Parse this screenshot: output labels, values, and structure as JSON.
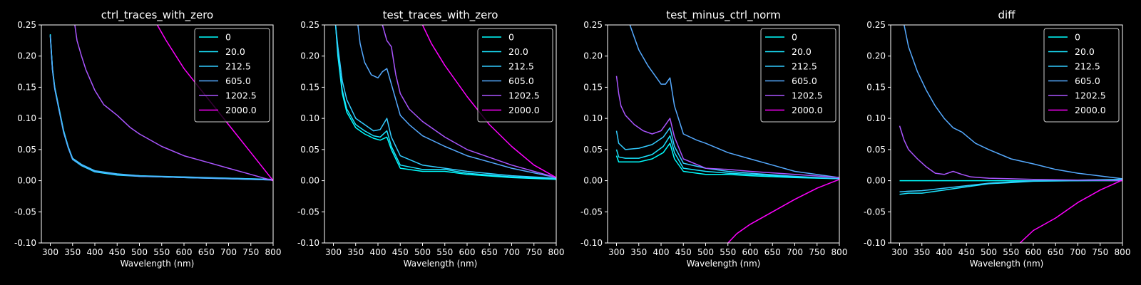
{
  "figure": {
    "background": "#000000",
    "foreground": "#ffffff"
  },
  "chart_data": [
    {
      "type": "line",
      "title": "ctrl_traces_with_zero",
      "xlabel": "Wavelength (nm)",
      "ylabel": "",
      "xlim": [
        280,
        800
      ],
      "ylim": [
        -0.1,
        0.25
      ],
      "xticks": [
        300,
        350,
        400,
        450,
        500,
        550,
        600,
        650,
        700,
        750,
        800
      ],
      "yticks": [
        -0.1,
        -0.05,
        0.0,
        0.05,
        0.1,
        0.15,
        0.2,
        0.25
      ],
      "grid": false,
      "legend_position": "top-right",
      "series": [
        {
          "name": "0",
          "color": "#00ffff",
          "x": [
            300,
            305,
            310,
            320,
            330,
            340,
            350,
            370,
            400,
            450,
            500,
            550,
            600,
            700,
            800
          ],
          "y": [
            0.235,
            0.18,
            0.15,
            0.115,
            0.08,
            0.055,
            0.035,
            0.025,
            0.015,
            0.01,
            0.008,
            0.006,
            0.005,
            0.004,
            0.002
          ]
        },
        {
          "name": "20.0",
          "color": "#1ae5ff",
          "x": [
            300,
            305,
            310,
            320,
            330,
            340,
            350,
            370,
            400,
            450,
            500,
            550,
            600,
            700,
            800
          ],
          "y": [
            0.233,
            0.178,
            0.148,
            0.113,
            0.078,
            0.054,
            0.034,
            0.024,
            0.014,
            0.009,
            0.007,
            0.006,
            0.005,
            0.003,
            0.001
          ]
        },
        {
          "name": "212.5",
          "color": "#33ccff",
          "x": [
            300,
            305,
            310,
            320,
            330,
            340,
            350,
            370,
            400,
            450,
            500,
            550,
            600,
            700,
            800
          ],
          "y": [
            0.234,
            0.179,
            0.149,
            0.114,
            0.079,
            0.055,
            0.036,
            0.026,
            0.016,
            0.011,
            0.008,
            0.007,
            0.006,
            0.004,
            0.002
          ]
        },
        {
          "name": "605.0",
          "color": "#55aaff",
          "x": [
            300,
            305,
            310,
            320,
            330,
            340,
            350,
            370,
            400,
            450,
            500,
            550,
            600,
            700,
            800
          ],
          "y": [
            0.232,
            0.177,
            0.147,
            0.112,
            0.077,
            0.053,
            0.034,
            0.025,
            0.015,
            0.01,
            0.007,
            0.006,
            0.005,
            0.003,
            0.001
          ]
        },
        {
          "name": "1202.5",
          "color": "#aa55ff",
          "x": [
            355,
            360,
            370,
            380,
            400,
            420,
            450,
            480,
            500,
            550,
            600,
            650,
            700,
            750,
            800
          ],
          "y": [
            0.25,
            0.225,
            0.2,
            0.178,
            0.145,
            0.122,
            0.105,
            0.085,
            0.075,
            0.055,
            0.04,
            0.03,
            0.02,
            0.01,
            0.0
          ]
        },
        {
          "name": "2000.0",
          "color": "#ff00ff",
          "x": [
            540,
            560,
            600,
            650,
            700,
            750,
            800
          ],
          "y": [
            0.25,
            0.225,
            0.18,
            0.135,
            0.09,
            0.045,
            0.0
          ]
        }
      ]
    },
    {
      "type": "line",
      "title": "test_traces_with_zero",
      "xlabel": "Wavelength (nm)",
      "ylabel": "",
      "xlim": [
        280,
        800
      ],
      "ylim": [
        -0.1,
        0.25
      ],
      "xticks": [
        300,
        350,
        400,
        450,
        500,
        550,
        600,
        650,
        700,
        750,
        800
      ],
      "yticks": [
        -0.1,
        -0.05,
        0.0,
        0.05,
        0.1,
        0.15,
        0.2,
        0.25
      ],
      "grid": false,
      "legend_position": "top-right",
      "series": [
        {
          "name": "0",
          "color": "#00ffff",
          "x": [
            305,
            310,
            320,
            330,
            350,
            370,
            390,
            405,
            420,
            430,
            450,
            500,
            550,
            600,
            700,
            800
          ],
          "y": [
            0.25,
            0.2,
            0.14,
            0.11,
            0.085,
            0.075,
            0.068,
            0.065,
            0.07,
            0.05,
            0.02,
            0.015,
            0.015,
            0.01,
            0.005,
            0.002
          ]
        },
        {
          "name": "20.0",
          "color": "#1ae5ff",
          "x": [
            305,
            310,
            320,
            330,
            350,
            370,
            390,
            405,
            420,
            430,
            450,
            500,
            550,
            600,
            700,
            800
          ],
          "y": [
            0.25,
            0.205,
            0.145,
            0.115,
            0.09,
            0.08,
            0.072,
            0.07,
            0.08,
            0.055,
            0.025,
            0.018,
            0.018,
            0.012,
            0.006,
            0.003
          ]
        },
        {
          "name": "212.5",
          "color": "#33ccff",
          "x": [
            305,
            310,
            320,
            330,
            350,
            370,
            390,
            405,
            420,
            430,
            450,
            500,
            550,
            600,
            700,
            800
          ],
          "y": [
            0.25,
            0.215,
            0.16,
            0.13,
            0.1,
            0.09,
            0.08,
            0.082,
            0.1,
            0.07,
            0.04,
            0.025,
            0.02,
            0.015,
            0.008,
            0.004
          ]
        },
        {
          "name": "605.0",
          "color": "#55aaff",
          "x": [
            355,
            360,
            370,
            385,
            400,
            410,
            420,
            430,
            450,
            470,
            500,
            550,
            600,
            650,
            700,
            800
          ],
          "y": [
            0.25,
            0.22,
            0.19,
            0.17,
            0.165,
            0.175,
            0.18,
            0.155,
            0.105,
            0.09,
            0.072,
            0.055,
            0.04,
            0.03,
            0.02,
            0.005
          ]
        },
        {
          "name": "1202.5",
          "color": "#aa55ff",
          "x": [
            410,
            420,
            430,
            440,
            450,
            470,
            500,
            550,
            600,
            700,
            800
          ],
          "y": [
            0.25,
            0.225,
            0.215,
            0.17,
            0.14,
            0.115,
            0.095,
            0.07,
            0.05,
            0.025,
            0.005
          ]
        },
        {
          "name": "2000.0",
          "color": "#ff00ff",
          "x": [
            500,
            520,
            550,
            600,
            650,
            700,
            750,
            800
          ],
          "y": [
            0.25,
            0.22,
            0.185,
            0.135,
            0.09,
            0.055,
            0.025,
            0.005
          ]
        }
      ]
    },
    {
      "type": "line",
      "title": "test_minus_ctrl_norm",
      "xlabel": "Wavelength (nm)",
      "ylabel": "",
      "xlim": [
        280,
        800
      ],
      "ylim": [
        -0.1,
        0.25
      ],
      "xticks": [
        300,
        350,
        400,
        450,
        500,
        550,
        600,
        650,
        700,
        750,
        800
      ],
      "yticks": [
        -0.1,
        -0.05,
        0.0,
        0.05,
        0.1,
        0.15,
        0.2,
        0.25
      ],
      "grid": false,
      "legend_position": "top-right",
      "series": [
        {
          "name": "0",
          "color": "#00ffff",
          "x": [
            300,
            305,
            320,
            350,
            380,
            405,
            420,
            430,
            450,
            500,
            550,
            600,
            700,
            800
          ],
          "y": [
            0.04,
            0.03,
            0.03,
            0.03,
            0.035,
            0.045,
            0.06,
            0.035,
            0.015,
            0.01,
            0.01,
            0.008,
            0.005,
            0.003
          ]
        },
        {
          "name": "20.0",
          "color": "#1ae5ff",
          "x": [
            300,
            305,
            320,
            350,
            380,
            405,
            420,
            430,
            450,
            500,
            550,
            600,
            700,
            800
          ],
          "y": [
            0.05,
            0.038,
            0.036,
            0.036,
            0.042,
            0.055,
            0.072,
            0.045,
            0.02,
            0.015,
            0.012,
            0.01,
            0.006,
            0.003
          ]
        },
        {
          "name": "212.5",
          "color": "#33ccff",
          "x": [
            300,
            305,
            320,
            350,
            380,
            405,
            420,
            430,
            450,
            500,
            550,
            600,
            700,
            800
          ],
          "y": [
            0.08,
            0.06,
            0.05,
            0.052,
            0.058,
            0.07,
            0.085,
            0.055,
            0.028,
            0.02,
            0.015,
            0.012,
            0.007,
            0.003
          ]
        },
        {
          "name": "605.0",
          "color": "#55aaff",
          "x": [
            330,
            340,
            350,
            370,
            390,
            400,
            410,
            420,
            430,
            450,
            480,
            500,
            550,
            600,
            650,
            700,
            800
          ],
          "y": [
            0.25,
            0.23,
            0.21,
            0.185,
            0.165,
            0.155,
            0.155,
            0.165,
            0.12,
            0.075,
            0.065,
            0.06,
            0.045,
            0.035,
            0.025,
            0.015,
            0.005
          ]
        },
        {
          "name": "1202.5",
          "color": "#aa55ff",
          "x": [
            300,
            305,
            310,
            320,
            340,
            360,
            380,
            400,
            410,
            420,
            430,
            450,
            500,
            550,
            600,
            700,
            800
          ],
          "y": [
            0.168,
            0.14,
            0.12,
            0.105,
            0.09,
            0.08,
            0.075,
            0.08,
            0.09,
            0.1,
            0.07,
            0.035,
            0.02,
            0.018,
            0.015,
            0.01,
            0.005
          ]
        },
        {
          "name": "2000.0",
          "color": "#ff00ff",
          "x": [
            550,
            570,
            600,
            650,
            700,
            750,
            800
          ],
          "y": [
            -0.1,
            -0.085,
            -0.07,
            -0.05,
            -0.03,
            -0.012,
            0.002
          ]
        }
      ]
    },
    {
      "type": "line",
      "title": "diff",
      "xlabel": "Wavelength (nm)",
      "ylabel": "",
      "xlim": [
        280,
        800
      ],
      "ylim": [
        -0.1,
        0.25
      ],
      "xticks": [
        300,
        350,
        400,
        450,
        500,
        550,
        600,
        650,
        700,
        750,
        800
      ],
      "yticks": [
        -0.1,
        -0.05,
        0.0,
        0.05,
        0.1,
        0.15,
        0.2,
        0.25
      ],
      "grid": false,
      "legend_position": "top-right",
      "series": [
        {
          "name": "0",
          "color": "#00ffff",
          "x": [
            300,
            800
          ],
          "y": [
            0.0,
            0.0
          ]
        },
        {
          "name": "20.0",
          "color": "#1ae5ff",
          "x": [
            300,
            320,
            350,
            400,
            450,
            500,
            550,
            600,
            700,
            800
          ],
          "y": [
            -0.022,
            -0.02,
            -0.02,
            -0.015,
            -0.01,
            -0.005,
            -0.003,
            -0.001,
            0.0,
            0.001
          ]
        },
        {
          "name": "212.5",
          "color": "#33ccff",
          "x": [
            300,
            320,
            350,
            400,
            450,
            500,
            550,
            600,
            700,
            800
          ],
          "y": [
            -0.018,
            -0.017,
            -0.016,
            -0.012,
            -0.008,
            -0.004,
            -0.002,
            0.0,
            0.001,
            0.002
          ]
        },
        {
          "name": "605.0",
          "color": "#55aaff",
          "x": [
            310,
            320,
            340,
            360,
            380,
            400,
            420,
            440,
            470,
            500,
            550,
            600,
            650,
            700,
            800
          ],
          "y": [
            0.25,
            0.215,
            0.175,
            0.145,
            0.12,
            0.1,
            0.085,
            0.078,
            0.06,
            0.05,
            0.035,
            0.027,
            0.018,
            0.012,
            0.003
          ]
        },
        {
          "name": "1202.5",
          "color": "#aa55ff",
          "x": [
            300,
            310,
            320,
            340,
            360,
            380,
            400,
            420,
            440,
            460,
            500,
            550,
            600,
            700,
            800
          ],
          "y": [
            0.088,
            0.065,
            0.05,
            0.035,
            0.022,
            0.012,
            0.01,
            0.015,
            0.01,
            0.006,
            0.004,
            0.003,
            0.002,
            0.001,
            0.0
          ]
        },
        {
          "name": "2000.0",
          "color": "#ff00ff",
          "x": [
            570,
            600,
            650,
            700,
            750,
            800
          ],
          "y": [
            -0.1,
            -0.08,
            -0.06,
            -0.035,
            -0.015,
            0.001
          ]
        }
      ]
    }
  ]
}
